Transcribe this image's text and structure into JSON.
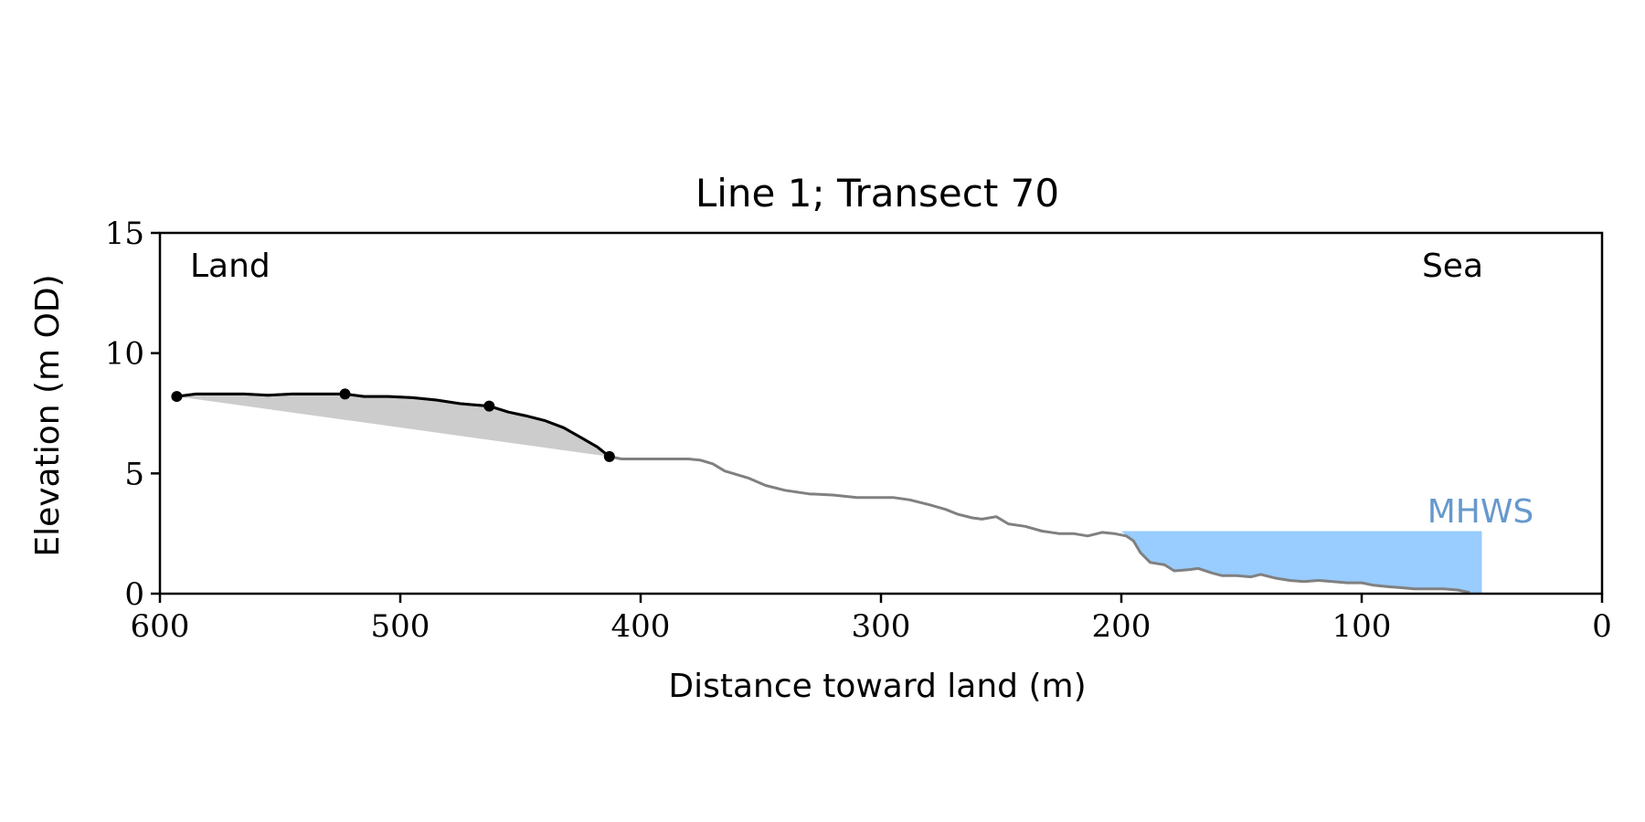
{
  "chart_data": {
    "type": "line",
    "title": "Line 1; Transect 70",
    "xlabel": "Distance toward land (m)",
    "ylabel": "Elevation (m OD)",
    "xlim": [
      600,
      0
    ],
    "ylim": [
      0,
      15
    ],
    "xticks": [
      600,
      500,
      400,
      300,
      200,
      100,
      0
    ],
    "yticks": [
      0,
      5,
      10,
      15
    ],
    "grid": false,
    "annotations": {
      "left": "Land",
      "right": "Sea",
      "mhws": "MHWS"
    },
    "colors": {
      "profile": "#808080",
      "highlight": "#000000",
      "fill": "#cccccc",
      "mhws": "#99ccff",
      "mhws_label": "#6699cc"
    },
    "mhws": {
      "elevation": 2.6,
      "x_from": 200,
      "x_to": 50
    },
    "fill_region": {
      "from": [
        593,
        8.2
      ],
      "to": [
        413,
        5.7
      ]
    },
    "highlight_points": [
      {
        "x": 593,
        "y": 8.2
      },
      {
        "x": 523,
        "y": 8.3
      },
      {
        "x": 463,
        "y": 7.8
      },
      {
        "x": 413,
        "y": 5.7
      }
    ],
    "series": [
      {
        "values": [
          [
            593,
            8.2
          ],
          [
            585,
            8.3
          ],
          [
            575,
            8.3
          ],
          [
            565,
            8.3
          ],
          [
            555,
            8.25
          ],
          [
            545,
            8.3
          ],
          [
            535,
            8.3
          ],
          [
            523,
            8.3
          ],
          [
            515,
            8.2
          ],
          [
            505,
            8.2
          ],
          [
            495,
            8.15
          ],
          [
            485,
            8.05
          ],
          [
            475,
            7.9
          ],
          [
            463,
            7.8
          ],
          [
            455,
            7.55
          ],
          [
            448,
            7.4
          ],
          [
            440,
            7.2
          ],
          [
            432,
            6.9
          ],
          [
            425,
            6.5
          ],
          [
            418,
            6.1
          ],
          [
            413,
            5.7
          ],
          [
            408,
            5.6
          ],
          [
            400,
            5.6
          ],
          [
            390,
            5.6
          ],
          [
            380,
            5.6
          ],
          [
            375,
            5.55
          ],
          [
            370,
            5.4
          ],
          [
            365,
            5.1
          ],
          [
            355,
            4.8
          ],
          [
            348,
            4.5
          ],
          [
            340,
            4.3
          ],
          [
            330,
            4.15
          ],
          [
            320,
            4.1
          ],
          [
            310,
            4.0
          ],
          [
            300,
            4.0
          ],
          [
            295,
            4.0
          ],
          [
            288,
            3.9
          ],
          [
            280,
            3.7
          ],
          [
            273,
            3.5
          ],
          [
            268,
            3.3
          ],
          [
            262,
            3.15
          ],
          [
            258,
            3.1
          ],
          [
            252,
            3.2
          ],
          [
            247,
            2.9
          ],
          [
            240,
            2.8
          ],
          [
            233,
            2.6
          ],
          [
            226,
            2.5
          ],
          [
            220,
            2.5
          ],
          [
            214,
            2.4
          ],
          [
            208,
            2.55
          ],
          [
            203,
            2.5
          ],
          [
            198,
            2.4
          ],
          [
            195,
            2.2
          ],
          [
            192,
            1.7
          ],
          [
            188,
            1.3
          ],
          [
            182,
            1.2
          ],
          [
            178,
            0.95
          ],
          [
            172,
            1.0
          ],
          [
            168,
            1.05
          ],
          [
            162,
            0.85
          ],
          [
            158,
            0.75
          ],
          [
            152,
            0.75
          ],
          [
            146,
            0.7
          ],
          [
            142,
            0.8
          ],
          [
            136,
            0.65
          ],
          [
            130,
            0.55
          ],
          [
            124,
            0.5
          ],
          [
            118,
            0.55
          ],
          [
            112,
            0.5
          ],
          [
            106,
            0.45
          ],
          [
            100,
            0.45
          ],
          [
            95,
            0.35
          ],
          [
            90,
            0.3
          ],
          [
            84,
            0.25
          ],
          [
            78,
            0.2
          ],
          [
            72,
            0.2
          ],
          [
            66,
            0.2
          ],
          [
            60,
            0.15
          ],
          [
            55,
            0.05
          ]
        ]
      }
    ]
  }
}
